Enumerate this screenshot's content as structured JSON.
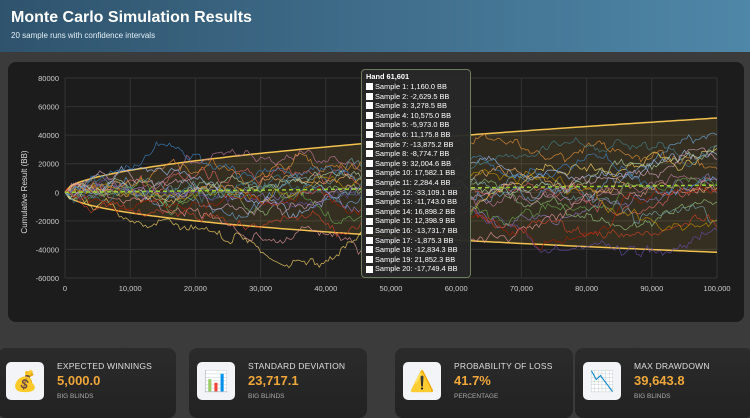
{
  "header": {
    "title": "Monte Carlo Simulation Results",
    "subtitle": "20 sample runs with confidence intervals"
  },
  "chart_data": {
    "type": "line",
    "ylabel": "Cumulative Result (BB)",
    "xlabel": "",
    "xlim": [
      0,
      100000
    ],
    "ylim": [
      -60000,
      80000
    ],
    "x_ticks": [
      "0",
      "10,000",
      "20,000",
      "30,000",
      "40,000",
      "50,000",
      "60,000",
      "70,000",
      "80,000",
      "90,000",
      "100,000"
    ],
    "y_ticks": [
      "80000",
      "60000",
      "40000",
      "20000",
      "0",
      "-20000",
      "-40000",
      "-60000"
    ],
    "grid": true,
    "expected_final": 5000,
    "confidence_upper_final": 52000,
    "confidence_lower_final": -42000,
    "band_color": "#f2c14e",
    "expected_color": "#9acd32",
    "tooltip": {
      "title": "Hand 61,601",
      "hand": 61601,
      "items": [
        {
          "label": "Sample 1: 1,160.0 BB",
          "value": 1160.0
        },
        {
          "label": "Sample 2: -2,629.5 BB",
          "value": -2629.5
        },
        {
          "label": "Sample 3: 3,278.5 BB",
          "value": 3278.5
        },
        {
          "label": "Sample 4: 10,575.0 BB",
          "value": 10575.0
        },
        {
          "label": "Sample 5: -5,973.0 BB",
          "value": -5973.0
        },
        {
          "label": "Sample 6: 11,175.8 BB",
          "value": 11175.8
        },
        {
          "label": "Sample 7: -13,875.2 BB",
          "value": -13875.2
        },
        {
          "label": "Sample 8: -8,774.7 BB",
          "value": -8774.7
        },
        {
          "label": "Sample 9: 32,004.6 BB",
          "value": 32004.6
        },
        {
          "label": "Sample 10: 17,582.1 BB",
          "value": 17582.1
        },
        {
          "label": "Sample 11: 2,284.4 BB",
          "value": 2284.4
        },
        {
          "label": "Sample 12: -33,109.1 BB",
          "value": -33109.1
        },
        {
          "label": "Sample 13: -11,743.0 BB",
          "value": -11743.0
        },
        {
          "label": "Sample 14: 16,898.2 BB",
          "value": 16898.2
        },
        {
          "label": "Sample 15: 12,398.9 BB",
          "value": 12398.9
        },
        {
          "label": "Sample 16: -13,731.7 BB",
          "value": -13731.7
        },
        {
          "label": "Sample 17: -1,875.3 BB",
          "value": -1875.3
        },
        {
          "label": "Sample 18: -12,834.3 BB",
          "value": -12834.3
        },
        {
          "label": "Sample 19: 21,852.3 BB",
          "value": 21852.3
        },
        {
          "label": "Sample 20: -17,749.4 BB",
          "value": -17749.4
        }
      ]
    }
  },
  "stats": [
    {
      "label": "EXPECTED WINNINGS",
      "value": "5,000.0",
      "unit": "BIG BLINDS",
      "icon": "money-bag-icon",
      "glyph": "💰"
    },
    {
      "label": "STANDARD DEVIATION",
      "value": "23,717.1",
      "unit": "BIG BLINDS",
      "icon": "bar-chart-icon",
      "glyph": "📊"
    },
    {
      "label": "PROBABILITY OF LOSS",
      "value": "41.7%",
      "unit": "PERCENTAGE",
      "icon": "warning-icon",
      "glyph": "⚠️"
    },
    {
      "label": "MAX DRAWDOWN",
      "value": "39,643.8",
      "unit": "BIG BLINDS",
      "icon": "chart-decreasing-icon",
      "glyph": "📉"
    }
  ]
}
